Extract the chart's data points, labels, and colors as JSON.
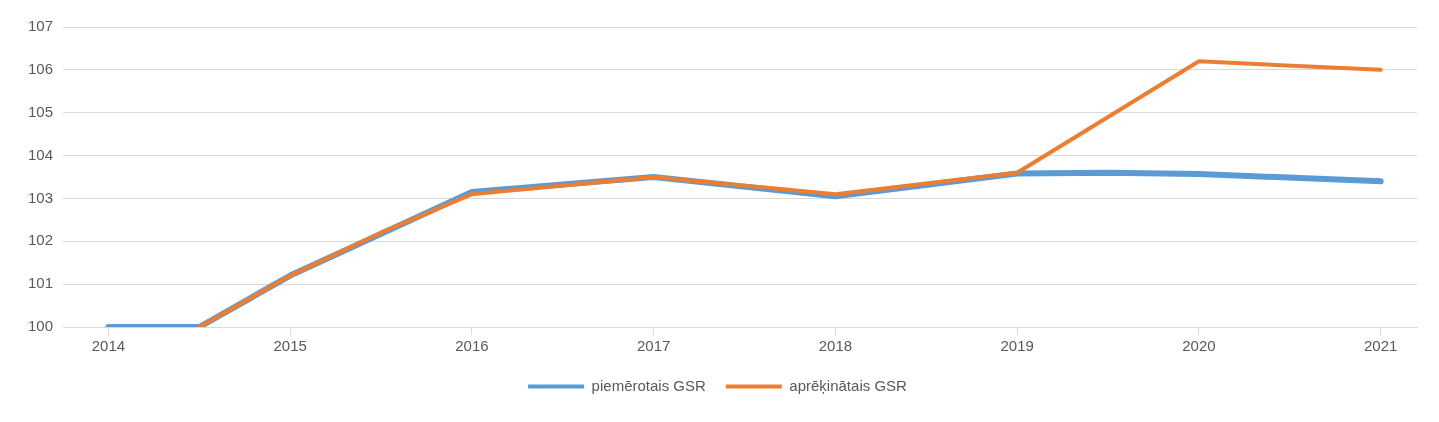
{
  "chart_data": {
    "type": "line",
    "xlim": [
      2013.75,
      2021.2
    ],
    "xticks": [
      2014,
      2015,
      2016,
      2017,
      2018,
      2019,
      2020,
      2021
    ],
    "ylim": [
      100,
      107
    ],
    "yticks": [
      100,
      101,
      102,
      103,
      104,
      105,
      106,
      107
    ],
    "grid": "y",
    "legend": "bottom",
    "marker": "none",
    "line_style": "solid",
    "series": [
      {
        "name": "piemērotais GSR",
        "color": "#5b9bd5",
        "x": [
          2014,
          2014.5,
          2015,
          2016,
          2017,
          2018,
          2019,
          2019.5,
          2020,
          2021
        ],
        "values": [
          100,
          100,
          101.2,
          103.15,
          103.5,
          103.05,
          103.58,
          103.6,
          103.57,
          103.4
        ]
      },
      {
        "name": "aprēķinātais GSR",
        "color": "#ed7d31",
        "x": [
          2014.5,
          2015,
          2015.5,
          2016,
          2017,
          2018,
          2019,
          2020,
          2021
        ],
        "values": [
          100,
          101.2,
          102.2,
          103.1,
          103.5,
          103.1,
          103.6,
          106.2,
          106.0
        ]
      }
    ]
  }
}
